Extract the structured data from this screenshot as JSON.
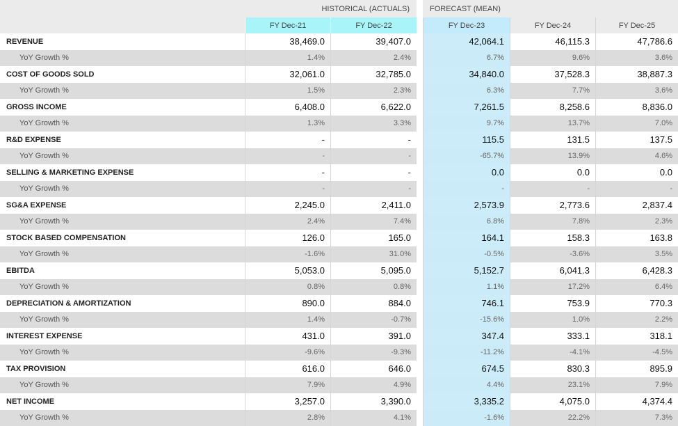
{
  "header": {
    "historical_label": "HISTORICAL (ACTUALS)",
    "forecast_label": "FORECAST (MEAN)",
    "columns": [
      "FY Dec-21",
      "FY Dec-22",
      "FY Dec-23",
      "FY Dec-24",
      "FY Dec-25"
    ]
  },
  "growth_label": "YoY Growth %",
  "rows": [
    {
      "label": "REVENUE",
      "values": [
        "38,469.0",
        "39,407.0",
        "42,064.1",
        "46,115.3",
        "47,786.6"
      ],
      "growth": [
        "1.4%",
        "2.4%",
        "6.7%",
        "9.6%",
        "3.6%"
      ]
    },
    {
      "label": "COST OF GOODS SOLD",
      "values": [
        "32,061.0",
        "32,785.0",
        "34,840.0",
        "37,528.3",
        "38,887.3"
      ],
      "growth": [
        "1.5%",
        "2.3%",
        "6.3%",
        "7.7%",
        "3.6%"
      ]
    },
    {
      "label": "GROSS INCOME",
      "values": [
        "6,408.0",
        "6,622.0",
        "7,261.5",
        "8,258.6",
        "8,836.0"
      ],
      "growth": [
        "1.3%",
        "3.3%",
        "9.7%",
        "13.7%",
        "7.0%"
      ]
    },
    {
      "label": "R&D EXPENSE",
      "values": [
        "-",
        "-",
        "115.5",
        "131.5",
        "137.5"
      ],
      "growth": [
        "-",
        "-",
        "-65.7%",
        "13.9%",
        "4.6%"
      ]
    },
    {
      "label": "SELLING & MARKETING EXPENSE",
      "values": [
        "-",
        "-",
        "0.0",
        "0.0",
        "0.0"
      ],
      "growth": [
        "-",
        "-",
        "-",
        "-",
        "-"
      ]
    },
    {
      "label": "SG&A EXPENSE",
      "values": [
        "2,245.0",
        "2,411.0",
        "2,573.9",
        "2,773.6",
        "2,837.4"
      ],
      "growth": [
        "2.4%",
        "7.4%",
        "6.8%",
        "7.8%",
        "2.3%"
      ]
    },
    {
      "label": "STOCK BASED COMPENSATION",
      "values": [
        "126.0",
        "165.0",
        "164.1",
        "158.3",
        "163.8"
      ],
      "growth": [
        "-1.6%",
        "31.0%",
        "-0.5%",
        "-3.6%",
        "3.5%"
      ]
    },
    {
      "label": "EBITDA",
      "values": [
        "5,053.0",
        "5,095.0",
        "5,152.7",
        "6,041.3",
        "6,428.3"
      ],
      "growth": [
        "0.8%",
        "0.8%",
        "1.1%",
        "17.2%",
        "6.4%"
      ]
    },
    {
      "label": "DEPRECIATION & AMORTIZATION",
      "values": [
        "890.0",
        "884.0",
        "746.1",
        "753.9",
        "770.3"
      ],
      "growth": [
        "1.4%",
        "-0.7%",
        "-15.6%",
        "1.0%",
        "2.2%"
      ]
    },
    {
      "label": "INTEREST EXPENSE",
      "values": [
        "431.0",
        "391.0",
        "347.4",
        "333.1",
        "318.1"
      ],
      "growth": [
        "-9.6%",
        "-9.3%",
        "-11.2%",
        "-4.1%",
        "-4.5%"
      ]
    },
    {
      "label": "TAX PROVISION",
      "values": [
        "616.0",
        "646.0",
        "674.5",
        "830.3",
        "895.9"
      ],
      "growth": [
        "7.9%",
        "4.9%",
        "4.4%",
        "23.1%",
        "7.9%"
      ]
    },
    {
      "label": "NET INCOME",
      "values": [
        "3,257.0",
        "3,390.0",
        "3,335.2",
        "4,075.0",
        "4,374.4"
      ],
      "growth": [
        "2.8%",
        "4.1%",
        "-1.6%",
        "22.2%",
        "7.3%"
      ]
    }
  ]
}
